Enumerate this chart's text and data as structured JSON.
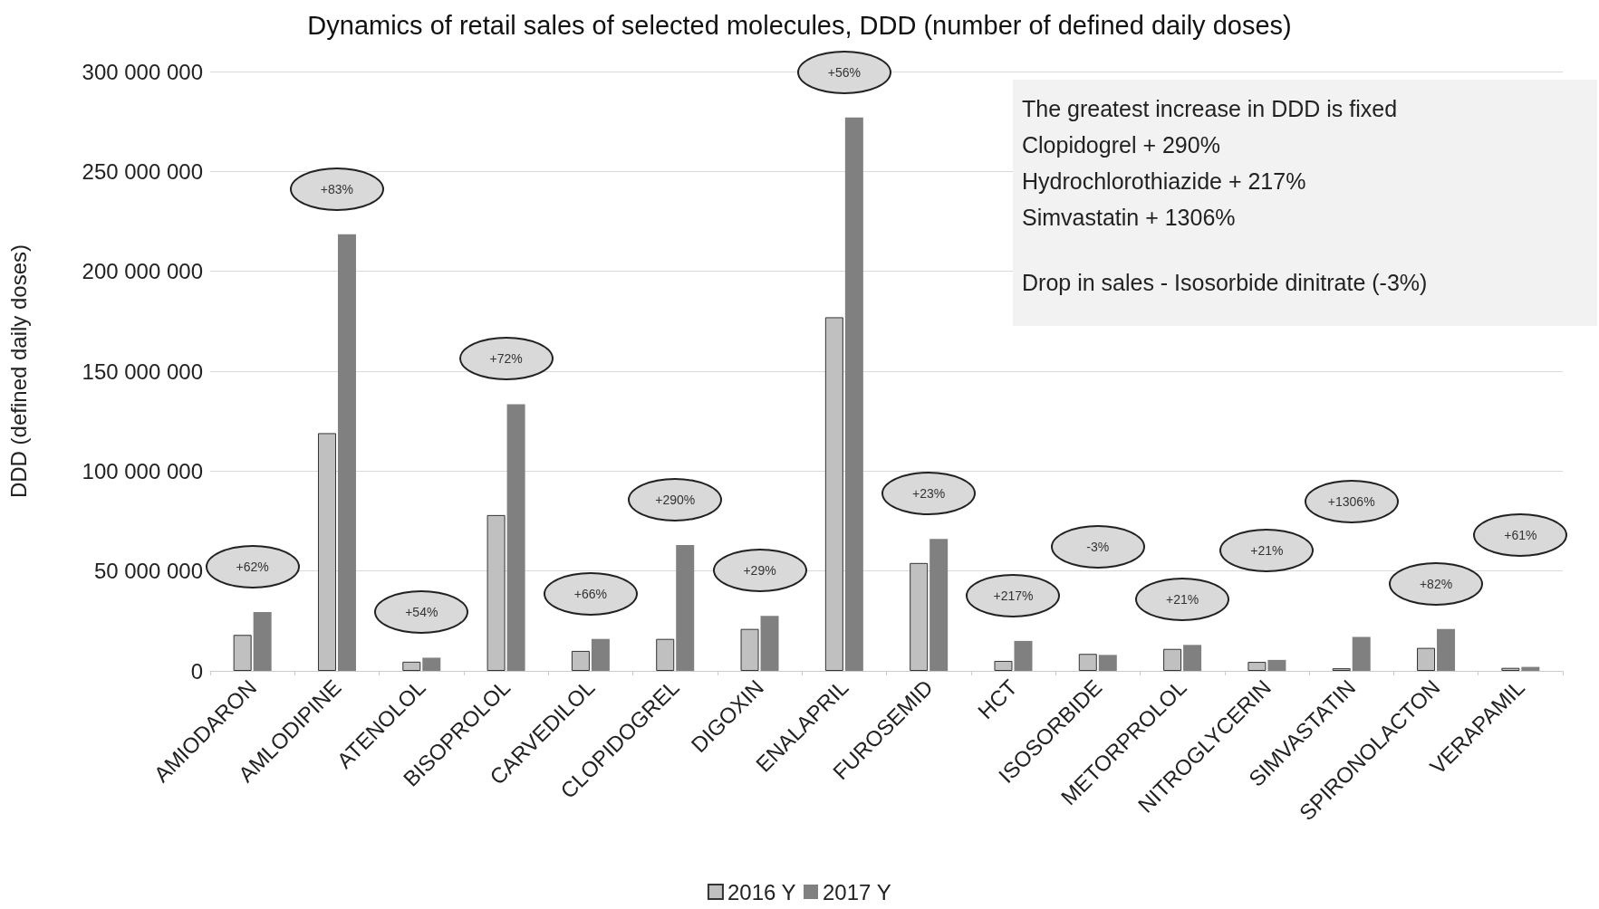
{
  "chart_data": {
    "type": "bar",
    "title": "Dynamics of retail sales of selected molecules, DDD (number of defined daily doses)",
    "ylabel": "DDD (defined daily doses)",
    "categories": [
      "AMIODARON",
      "AMLODIPINE",
      "ATENOLOL",
      "BISOPROLOL",
      "CARVEDILOL",
      "CLOPIDOGREL",
      "DIGOXIN",
      "ENALAPRIL",
      "FUROSEMID",
      "HCT",
      "ISOSORBIDE",
      "METORPROLOL",
      "NITROGLYCERIN",
      "SIMVASTATIN",
      "SPIRONOLACTON",
      "VERAPAMIL"
    ],
    "series": [
      {
        "name": "2016 Y",
        "color": "#c0c0c0",
        "values": [
          18000000,
          119000000,
          4600000,
          78000000,
          10000000,
          16000000,
          21000000,
          177000000,
          54000000,
          5000000,
          8500000,
          11000000,
          4500000,
          1300000,
          11500000,
          1500000
        ]
      },
      {
        "name": "2017 Y",
        "color": "#808080",
        "values": [
          29500000,
          218500000,
          6600000,
          133500000,
          16000000,
          63000000,
          27500000,
          277000000,
          66000000,
          15000000,
          8000000,
          13000000,
          5500000,
          17000000,
          21000000,
          2000000
        ]
      }
    ],
    "ylim": [
      0,
      300000000
    ],
    "yticks": [
      {
        "value": 0,
        "label": "0"
      },
      {
        "value": 50000000,
        "label": "50 000 000"
      },
      {
        "value": 100000000,
        "label": "100 000 000"
      },
      {
        "value": 150000000,
        "label": "150 000 000"
      },
      {
        "value": 200000000,
        "label": "200 000 000"
      },
      {
        "value": 250000000,
        "label": "250 000 000"
      },
      {
        "value": 300000000,
        "label": "300 000 000"
      }
    ],
    "grid": "y",
    "legend": "bottom",
    "annotations": [
      "+62%",
      "+83%",
      "+54%",
      "+72%",
      "+66%",
      "+290%",
      "+29%",
      "+56%",
      "+23%",
      "+217%",
      "-3%",
      "+21%",
      "+21%",
      "+1306%",
      "+82%",
      "+61%",
      "The greatest increase in DDD is fixed",
      "Clopidogrel + 290%",
      "Hydrochlorothiazide + 217%",
      "Simvastatin + 1306%",
      "Drop in sales - Isosorbide dinitrate (-3%)"
    ]
  }
}
